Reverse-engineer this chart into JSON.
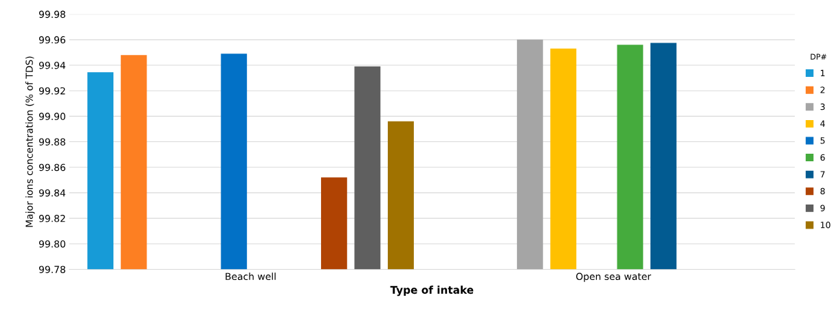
{
  "chart_data": {
    "type": "bar",
    "xlabel": "Type of intake",
    "ylabel": "Major ions concentration (% of TDS)",
    "legend_title": "DP#",
    "categories": [
      "Beach well",
      "Open sea water"
    ],
    "series": [
      {
        "name": "1",
        "color": "#179bd7",
        "values": [
          99.9345,
          null
        ]
      },
      {
        "name": "2",
        "color": "#fd7f22",
        "values": [
          99.948,
          null
        ]
      },
      {
        "name": "3",
        "color": "#a5a5a5",
        "values": [
          null,
          99.96
        ]
      },
      {
        "name": "4",
        "color": "#ffc000",
        "values": [
          null,
          99.953
        ]
      },
      {
        "name": "5",
        "color": "#0271c6",
        "values": [
          99.949,
          null
        ]
      },
      {
        "name": "6",
        "color": "#45ab3d",
        "values": [
          null,
          99.956
        ]
      },
      {
        "name": "7",
        "color": "#025b91",
        "values": [
          null,
          99.9575
        ]
      },
      {
        "name": "8",
        "color": "#b04303",
        "values": [
          99.852,
          null
        ]
      },
      {
        "name": "9",
        "color": "#5f5f5f",
        "values": [
          99.939,
          null
        ]
      },
      {
        "name": "10",
        "color": "#a07200",
        "values": [
          99.896,
          null
        ]
      }
    ],
    "ylim": [
      99.78,
      99.98
    ],
    "yticks": [
      {
        "value": 99.78,
        "label": "99.78"
      },
      {
        "value": 99.8,
        "label": "99.80"
      },
      {
        "value": 99.82,
        "label": "99.82"
      },
      {
        "value": 99.84,
        "label": "99.84"
      },
      {
        "value": 99.86,
        "label": "99.86"
      },
      {
        "value": 99.88,
        "label": "99.88"
      },
      {
        "value": 99.9,
        "label": "99.90"
      },
      {
        "value": 99.92,
        "label": "99.92"
      },
      {
        "value": 99.94,
        "label": "99.94"
      },
      {
        "value": 99.96,
        "label": "99.96"
      },
      {
        "value": 99.98,
        "label": "99.98"
      }
    ],
    "grid": "y",
    "legend": "right"
  }
}
